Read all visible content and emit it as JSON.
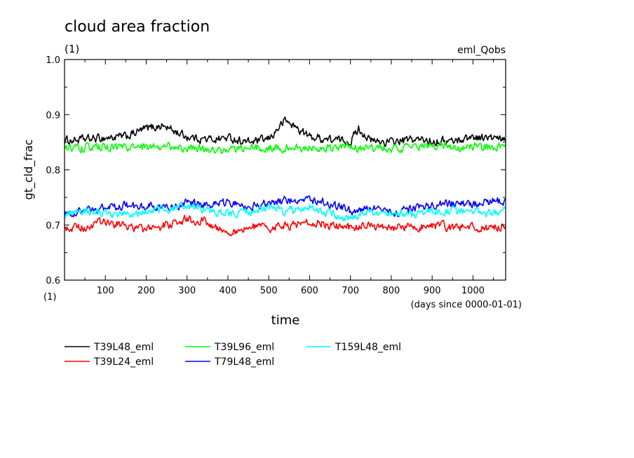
{
  "chart_data": {
    "type": "line",
    "title": "cloud area fraction",
    "units_label": "(1)",
    "experiment_label": "eml_Qobs",
    "ylabel": "gt_cld_frac",
    "xlabel": "time",
    "x_units_label": "(days since 0000-01-01)",
    "x_axis_units_label": "(1)",
    "xlim": [
      0,
      1080
    ],
    "ylim": [
      0.6,
      1.0
    ],
    "x_ticks": [
      100,
      200,
      300,
      400,
      500,
      600,
      700,
      800,
      900,
      1000
    ],
    "y_ticks": [
      0.6,
      0.7,
      0.8,
      0.9,
      1.0
    ],
    "y_tick_labels": [
      "0.6",
      "0.7",
      "0.8",
      "0.9",
      "1.0"
    ],
    "grid": false,
    "legend_placement": "bottom",
    "series": [
      {
        "name": "T39L48_eml",
        "color": "#000000",
        "x": [
          0,
          50,
          100,
          150,
          200,
          240,
          300,
          350,
          400,
          450,
          500,
          540,
          600,
          650,
          700,
          720,
          750,
          800,
          850,
          900,
          950,
          1000,
          1050,
          1080
        ],
        "y": [
          0.853,
          0.855,
          0.858,
          0.86,
          0.875,
          0.88,
          0.86,
          0.855,
          0.858,
          0.85,
          0.855,
          0.89,
          0.86,
          0.855,
          0.852,
          0.875,
          0.852,
          0.85,
          0.855,
          0.853,
          0.852,
          0.86,
          0.857,
          0.852
        ]
      },
      {
        "name": "T39L24_eml",
        "color": "#ff0000",
        "x": [
          0,
          50,
          100,
          150,
          200,
          250,
          300,
          350,
          400,
          450,
          500,
          550,
          600,
          650,
          700,
          750,
          800,
          850,
          900,
          950,
          1000,
          1050,
          1080
        ],
        "y": [
          0.695,
          0.695,
          0.705,
          0.7,
          0.69,
          0.7,
          0.71,
          0.705,
          0.685,
          0.695,
          0.695,
          0.7,
          0.705,
          0.7,
          0.695,
          0.698,
          0.695,
          0.695,
          0.7,
          0.695,
          0.695,
          0.695,
          0.697
        ]
      },
      {
        "name": "T39L96_eml",
        "color": "#00ff00",
        "x": [
          0,
          50,
          100,
          150,
          200,
          250,
          300,
          350,
          400,
          450,
          500,
          550,
          600,
          650,
          700,
          750,
          800,
          850,
          900,
          950,
          1000,
          1050,
          1080
        ],
        "y": [
          0.84,
          0.84,
          0.84,
          0.84,
          0.84,
          0.842,
          0.84,
          0.838,
          0.835,
          0.84,
          0.84,
          0.84,
          0.838,
          0.84,
          0.84,
          0.84,
          0.838,
          0.84,
          0.845,
          0.84,
          0.842,
          0.84,
          0.84
        ]
      },
      {
        "name": "T79L48_eml",
        "color": "#0000ff",
        "x": [
          0,
          50,
          100,
          150,
          200,
          250,
          300,
          350,
          400,
          450,
          500,
          550,
          600,
          650,
          700,
          750,
          800,
          850,
          900,
          950,
          1000,
          1050,
          1080
        ],
        "y": [
          0.72,
          0.725,
          0.73,
          0.735,
          0.735,
          0.73,
          0.74,
          0.735,
          0.74,
          0.735,
          0.74,
          0.745,
          0.745,
          0.74,
          0.725,
          0.73,
          0.72,
          0.73,
          0.735,
          0.74,
          0.735,
          0.745,
          0.74
        ]
      },
      {
        "name": "T159L48_eml",
        "color": "#00ffff",
        "x": [
          0,
          50,
          100,
          150,
          200,
          250,
          300,
          350,
          400,
          450,
          500,
          550,
          600,
          650,
          700,
          750,
          800,
          850,
          900,
          950,
          1000,
          1050,
          1080
        ],
        "y": [
          0.715,
          0.725,
          0.72,
          0.72,
          0.725,
          0.73,
          0.735,
          0.725,
          0.72,
          0.725,
          0.73,
          0.725,
          0.735,
          0.72,
          0.71,
          0.725,
          0.72,
          0.72,
          0.725,
          0.725,
          0.725,
          0.72,
          0.73
        ]
      }
    ]
  }
}
